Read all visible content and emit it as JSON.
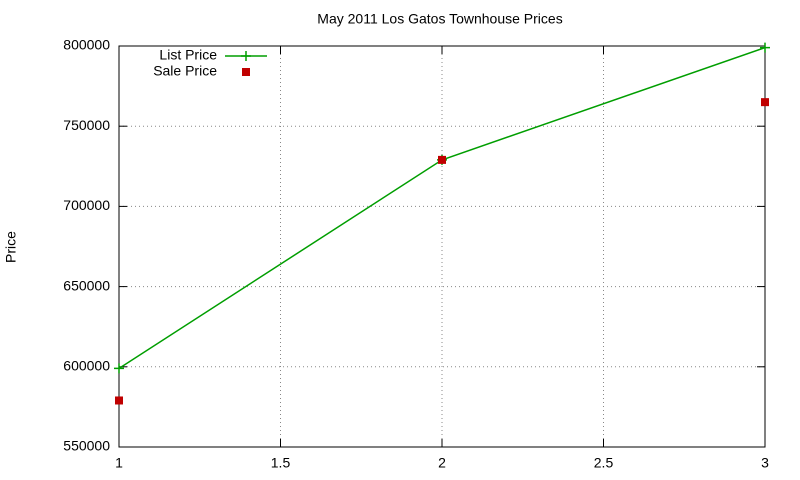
{
  "chart_data": {
    "type": "line",
    "title": "May 2011 Los Gatos Townhouse Prices",
    "y_label": "Price",
    "x": [
      1,
      2,
      3
    ],
    "series": [
      {
        "name": "List Price",
        "color": "#009e00",
        "mode": "lines+points",
        "values": [
          599000,
          729000,
          799000
        ]
      },
      {
        "name": "Sale Price",
        "color": "#c00000",
        "mode": "points",
        "values": [
          579000,
          729000,
          765000
        ]
      }
    ],
    "xlim": [
      1,
      3
    ],
    "xticks": [
      1,
      1.5,
      2,
      2.5,
      3
    ],
    "ylim": [
      550000,
      800000
    ],
    "yticks": [
      550000,
      600000,
      650000,
      700000,
      750000,
      800000
    ],
    "grid": true,
    "legend": "top-left"
  }
}
